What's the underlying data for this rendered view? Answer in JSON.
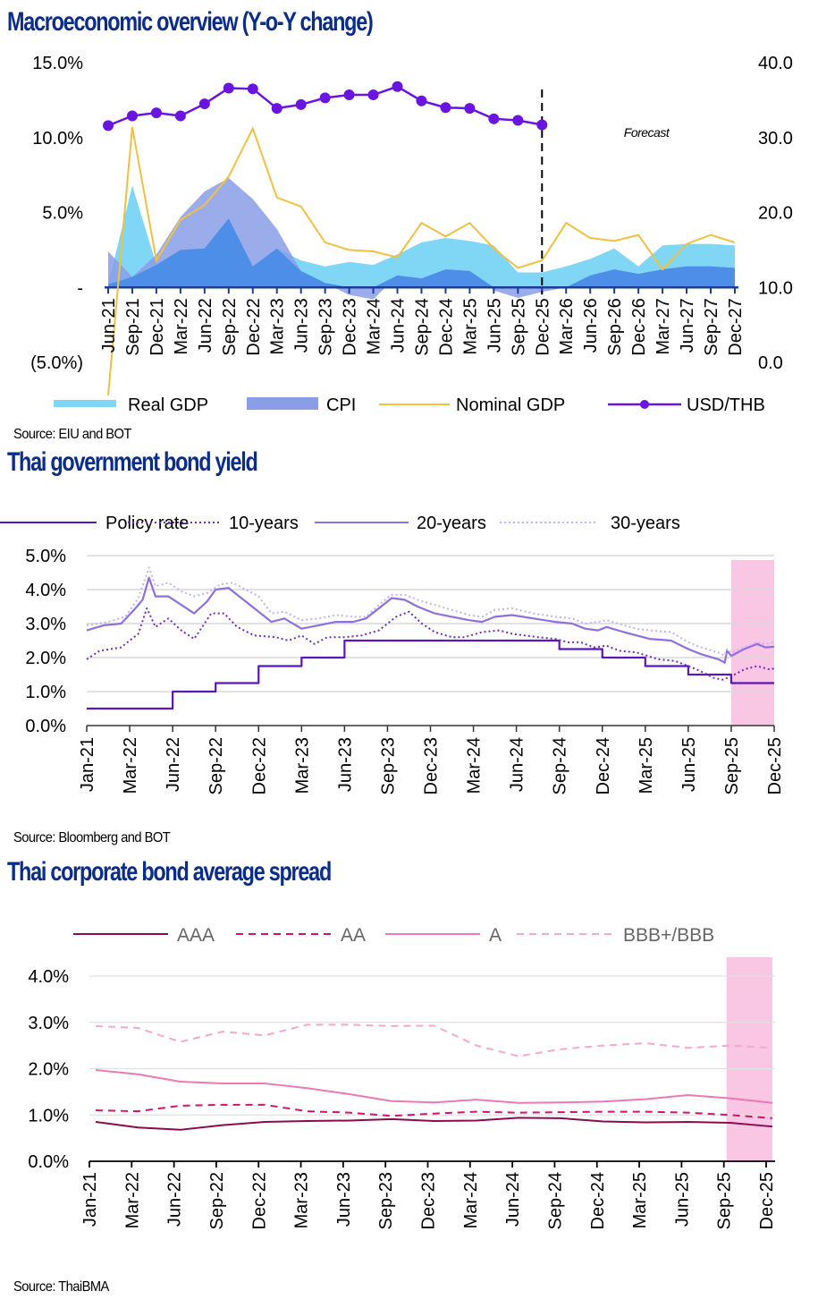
{
  "page": {
    "sections": [
      {
        "title": "Macroeconomic overview (Y-o-Y change)",
        "source": "Source: EIU and BOT"
      },
      {
        "title": "Thai government bond yield",
        "source": "Source: Bloomberg and BOT"
      },
      {
        "title": "Thai corporate bond average spread",
        "source": "Source: ThaiBMA"
      }
    ]
  },
  "chart_data": [
    {
      "type": "area",
      "title": "Macroeconomic overview (Y-o-Y change)",
      "categories": [
        "Jun-21",
        "Sep-21",
        "Dec-21",
        "Mar-22",
        "Jun-22",
        "Sep-22",
        "Dec-22",
        "Mar-23",
        "Jun-23",
        "Sep-23",
        "Dec-23",
        "Mar-24",
        "Jun-24",
        "Sep-24",
        "Dec-24",
        "Mar-25",
        "Jun-25",
        "Sep-25",
        "Dec-25",
        "Mar-26",
        "Jun-26",
        "Sep-26",
        "Dec-26",
        "Mar-27",
        "Jun-27",
        "Sep-27",
        "Dec-27"
      ],
      "left_axis": {
        "ticks": [
          "15.0%",
          "10.0%",
          "5.0%",
          "-",
          "(5.0%)"
        ],
        "range": [
          -5,
          15
        ]
      },
      "right_axis": {
        "ticks": [
          "40.0",
          "30.0",
          "20.0",
          "10.0",
          "0.0"
        ],
        "range": [
          0,
          40
        ]
      },
      "annotation": "Forecast",
      "forecast_start": "Dec-25",
      "series": [
        {
          "name": "Real GDP",
          "kind": "area",
          "axis": "left",
          "color": "#7fd6f5",
          "values": [
            0.2,
            6.8,
            1.5,
            2.5,
            2.6,
            4.6,
            1.4,
            2.6,
            1.8,
            1.4,
            1.7,
            1.5,
            2.2,
            3.0,
            3.3,
            3.1,
            2.8,
            1.0,
            1.0,
            1.4,
            1.9,
            2.6,
            1.4,
            2.8,
            2.9,
            2.9,
            2.8
          ]
        },
        {
          "name": "CPI",
          "kind": "area",
          "axis": "left",
          "color": "#8a9ee8",
          "values": [
            2.4,
            0.7,
            2.2,
            4.7,
            6.4,
            7.3,
            5.9,
            3.9,
            1.1,
            0.3,
            -0.5,
            -0.8,
            0.8,
            0.6,
            1.2,
            1.1,
            -0.2,
            -0.7,
            -0.3,
            0.0,
            0.8,
            1.2,
            0.9,
            1.2,
            1.4,
            1.4,
            1.3
          ]
        },
        {
          "name": "Nominal GDP",
          "kind": "line",
          "axis": "left",
          "color": "#f0c040",
          "values": [
            -7.2,
            10.7,
            1.8,
            4.5,
            5.5,
            7.4,
            10.6,
            6.0,
            5.4,
            3.0,
            2.5,
            2.4,
            2.0,
            4.3,
            3.4,
            4.3,
            2.6,
            1.3,
            1.8,
            4.3,
            3.3,
            3.1,
            3.5,
            1.2,
            2.9,
            3.5,
            3.0
          ]
        },
        {
          "name": "USD/THB",
          "kind": "line-markers",
          "axis": "right",
          "color": "#6a14e0",
          "values": [
            31.6,
            32.9,
            33.3,
            32.9,
            34.5,
            36.6,
            36.5,
            33.9,
            34.4,
            35.3,
            35.7,
            35.7,
            36.8,
            34.9,
            34.0,
            33.9,
            32.5,
            32.3,
            31.7
          ]
        }
      ]
    },
    {
      "type": "line",
      "title": "Thai government bond yield",
      "x_ticks": [
        "Jan-21",
        "Mar-22",
        "Jun-22",
        "Sep-22",
        "Dec-22",
        "Mar-23",
        "Jun-23",
        "Sep-23",
        "Dec-23",
        "Mar-24",
        "Jun-24",
        "Sep-24",
        "Dec-24",
        "Mar-25",
        "Jun-25",
        "Sep-25",
        "Dec-25"
      ],
      "y_ticks": [
        "5.0%",
        "4.0%",
        "3.0%",
        "2.0%",
        "1.0%",
        "0.0%"
      ],
      "ylim": [
        0,
        5
      ],
      "grid": true,
      "legend": "top",
      "highlight_region": {
        "from": "Sep-25",
        "to": "Dec-25",
        "color": "#f9c6e4"
      },
      "series": [
        {
          "name": "Policy rate",
          "style": "solid",
          "color": "#5a17b8",
          "points": [
            [
              0,
              0.5
            ],
            [
              2,
              0.5
            ],
            [
              2,
              1.0
            ],
            [
              3,
              1.0
            ],
            [
              3,
              1.25
            ],
            [
              4,
              1.25
            ],
            [
              4,
              1.75
            ],
            [
              5,
              1.75
            ],
            [
              5,
              2.0
            ],
            [
              6,
              2.0
            ],
            [
              6,
              2.5
            ],
            [
              11,
              2.5
            ],
            [
              11,
              2.25
            ],
            [
              12,
              2.25
            ],
            [
              12,
              2.0
            ],
            [
              13,
              2.0
            ],
            [
              13,
              1.75
            ],
            [
              14,
              1.75
            ],
            [
              14,
              1.5
            ],
            [
              15,
              1.5
            ],
            [
              15,
              1.25
            ],
            [
              16,
              1.25
            ]
          ]
        },
        {
          "name": "10-years",
          "style": "dotted",
          "color": "#6a2dc0",
          "points": [
            [
              0,
              1.95
            ],
            [
              0.3,
              2.2
            ],
            [
              0.8,
              2.3
            ],
            [
              1.2,
              2.7
            ],
            [
              1.4,
              3.45
            ],
            [
              1.6,
              2.9
            ],
            [
              1.9,
              3.15
            ],
            [
              2.2,
              2.8
            ],
            [
              2.5,
              2.55
            ],
            [
              2.9,
              3.3
            ],
            [
              3.2,
              3.3
            ],
            [
              3.5,
              2.9
            ],
            [
              3.9,
              2.65
            ],
            [
              4.4,
              2.6
            ],
            [
              4.7,
              2.5
            ],
            [
              5.0,
              2.65
            ],
            [
              5.3,
              2.4
            ],
            [
              5.6,
              2.6
            ],
            [
              6.0,
              2.6
            ],
            [
              6.4,
              2.65
            ],
            [
              6.8,
              2.8
            ],
            [
              7.2,
              3.2
            ],
            [
              7.5,
              3.35
            ],
            [
              7.8,
              3.0
            ],
            [
              8.1,
              2.75
            ],
            [
              8.5,
              2.6
            ],
            [
              8.8,
              2.6
            ],
            [
              9.2,
              2.75
            ],
            [
              9.6,
              2.8
            ],
            [
              9.9,
              2.7
            ],
            [
              10.5,
              2.6
            ],
            [
              10.9,
              2.55
            ],
            [
              11.2,
              2.45
            ],
            [
              11.5,
              2.45
            ],
            [
              11.8,
              2.3
            ],
            [
              12.1,
              2.35
            ],
            [
              12.4,
              2.2
            ],
            [
              12.8,
              2.15
            ],
            [
              13.3,
              1.95
            ],
            [
              13.7,
              1.9
            ],
            [
              14.2,
              1.65
            ],
            [
              14.6,
              1.4
            ],
            [
              14.8,
              1.35
            ],
            [
              15.0,
              1.45
            ],
            [
              15.3,
              1.65
            ],
            [
              15.6,
              1.75
            ],
            [
              15.9,
              1.65
            ],
            [
              16,
              1.68
            ]
          ]
        },
        {
          "name": "20-years",
          "style": "solid",
          "color": "#8f6fe0",
          "points": [
            [
              0,
              2.8
            ],
            [
              0.4,
              2.95
            ],
            [
              0.8,
              3.0
            ],
            [
              1.1,
              3.4
            ],
            [
              1.3,
              3.7
            ],
            [
              1.45,
              4.35
            ],
            [
              1.6,
              3.8
            ],
            [
              1.9,
              3.8
            ],
            [
              2.2,
              3.55
            ],
            [
              2.5,
              3.3
            ],
            [
              2.8,
              3.65
            ],
            [
              3.0,
              4.0
            ],
            [
              3.3,
              4.05
            ],
            [
              3.6,
              3.75
            ],
            [
              3.9,
              3.45
            ],
            [
              4.3,
              3.05
            ],
            [
              4.6,
              3.15
            ],
            [
              5.0,
              2.85
            ],
            [
              5.4,
              2.95
            ],
            [
              5.8,
              3.05
            ],
            [
              6.2,
              3.05
            ],
            [
              6.5,
              3.15
            ],
            [
              6.8,
              3.45
            ],
            [
              7.1,
              3.75
            ],
            [
              7.4,
              3.7
            ],
            [
              7.7,
              3.5
            ],
            [
              8.1,
              3.3
            ],
            [
              8.5,
              3.2
            ],
            [
              8.9,
              3.1
            ],
            [
              9.2,
              3.05
            ],
            [
              9.5,
              3.2
            ],
            [
              9.9,
              3.25
            ],
            [
              10.4,
              3.15
            ],
            [
              10.9,
              3.05
            ],
            [
              11.3,
              3.0
            ],
            [
              11.6,
              2.85
            ],
            [
              11.9,
              2.8
            ],
            [
              12.1,
              2.9
            ],
            [
              12.5,
              2.75
            ],
            [
              12.8,
              2.65
            ],
            [
              13.1,
              2.55
            ],
            [
              13.6,
              2.5
            ],
            [
              14.0,
              2.25
            ],
            [
              14.3,
              2.1
            ],
            [
              14.7,
              1.95
            ],
            [
              14.85,
              1.85
            ],
            [
              14.9,
              2.2
            ],
            [
              15.0,
              2.05
            ],
            [
              15.3,
              2.25
            ],
            [
              15.6,
              2.4
            ],
            [
              15.8,
              2.3
            ],
            [
              16,
              2.32
            ]
          ]
        },
        {
          "name": "30-years",
          "style": "dotted",
          "color": "#c4b0f0",
          "points": [
            [
              0,
              2.95
            ],
            [
              0.5,
              3.05
            ],
            [
              0.9,
              3.2
            ],
            [
              1.2,
              3.75
            ],
            [
              1.45,
              4.65
            ],
            [
              1.6,
              4.1
            ],
            [
              1.9,
              4.2
            ],
            [
              2.2,
              3.95
            ],
            [
              2.5,
              3.8
            ],
            [
              2.8,
              3.9
            ],
            [
              3.1,
              4.15
            ],
            [
              3.4,
              4.2
            ],
            [
              3.7,
              4.0
            ],
            [
              4.0,
              3.8
            ],
            [
              4.3,
              3.3
            ],
            [
              4.6,
              3.35
            ],
            [
              5.0,
              3.1
            ],
            [
              5.4,
              3.15
            ],
            [
              5.8,
              3.25
            ],
            [
              6.2,
              3.2
            ],
            [
              6.5,
              3.2
            ],
            [
              6.8,
              3.55
            ],
            [
              7.1,
              3.85
            ],
            [
              7.4,
              3.85
            ],
            [
              7.7,
              3.7
            ],
            [
              8.1,
              3.55
            ],
            [
              8.5,
              3.4
            ],
            [
              8.9,
              3.25
            ],
            [
              9.2,
              3.2
            ],
            [
              9.5,
              3.4
            ],
            [
              9.9,
              3.45
            ],
            [
              10.4,
              3.3
            ],
            [
              10.9,
              3.2
            ],
            [
              11.3,
              3.15
            ],
            [
              11.6,
              3.0
            ],
            [
              11.9,
              3.05
            ],
            [
              12.1,
              3.1
            ],
            [
              12.5,
              2.95
            ],
            [
              12.8,
              2.85
            ],
            [
              13.1,
              2.8
            ],
            [
              13.6,
              2.75
            ],
            [
              14.0,
              2.45
            ],
            [
              14.3,
              2.3
            ],
            [
              14.7,
              2.15
            ],
            [
              14.85,
              2.05
            ],
            [
              14.9,
              2.25
            ],
            [
              15.0,
              2.15
            ],
            [
              15.3,
              2.3
            ],
            [
              15.6,
              2.45
            ],
            [
              15.8,
              2.4
            ],
            [
              16,
              2.45
            ]
          ]
        }
      ]
    },
    {
      "type": "line",
      "title": "Thai corporate bond average spread",
      "x_ticks": [
        "Jan-21",
        "Mar-22",
        "Jun-22",
        "Sep-22",
        "Dec-22",
        "Mar-23",
        "Jun-23",
        "Sep-23",
        "Dec-23",
        "Mar-24",
        "Jun-24",
        "Sep-24",
        "Dec-24",
        "Mar-25",
        "Jun-25",
        "Sep-25",
        "Dec-25"
      ],
      "y_ticks": [
        "4.0%",
        "3.0%",
        "2.0%",
        "1.0%",
        "0.0%"
      ],
      "ylim": [
        0,
        4
      ],
      "grid": true,
      "legend": "top",
      "highlight_region": {
        "from": "Sep-25",
        "to": "Dec-25",
        "color": "#f9c6e4"
      },
      "series": [
        {
          "name": "AAA",
          "style": "solid",
          "color": "#8b0a50",
          "values": [
            0.85,
            0.73,
            0.68,
            0.78,
            0.85,
            0.87,
            0.88,
            0.91,
            0.87,
            0.88,
            0.94,
            0.93,
            0.86,
            0.84,
            0.85,
            0.83,
            0.75
          ]
        },
        {
          "name": "AA",
          "style": "dashed",
          "color": "#d4116e",
          "values": [
            1.1,
            1.08,
            1.2,
            1.22,
            1.22,
            1.08,
            1.05,
            0.98,
            1.03,
            1.07,
            1.05,
            1.06,
            1.07,
            1.07,
            1.05,
            1.0,
            0.93
          ]
        },
        {
          "name": "A",
          "style": "solid",
          "color": "#ee78b4",
          "values": [
            1.97,
            1.88,
            1.72,
            1.68,
            1.68,
            1.58,
            1.45,
            1.3,
            1.27,
            1.33,
            1.26,
            1.27,
            1.29,
            1.34,
            1.43,
            1.36,
            1.26
          ]
        },
        {
          "name": "BBB+/BBB",
          "style": "dashed",
          "color": "#f4a8d0",
          "values": [
            2.92,
            2.88,
            2.58,
            2.8,
            2.72,
            2.95,
            2.95,
            2.92,
            2.93,
            2.5,
            2.27,
            2.42,
            2.5,
            2.55,
            2.45,
            2.5,
            2.45
          ]
        }
      ]
    }
  ]
}
